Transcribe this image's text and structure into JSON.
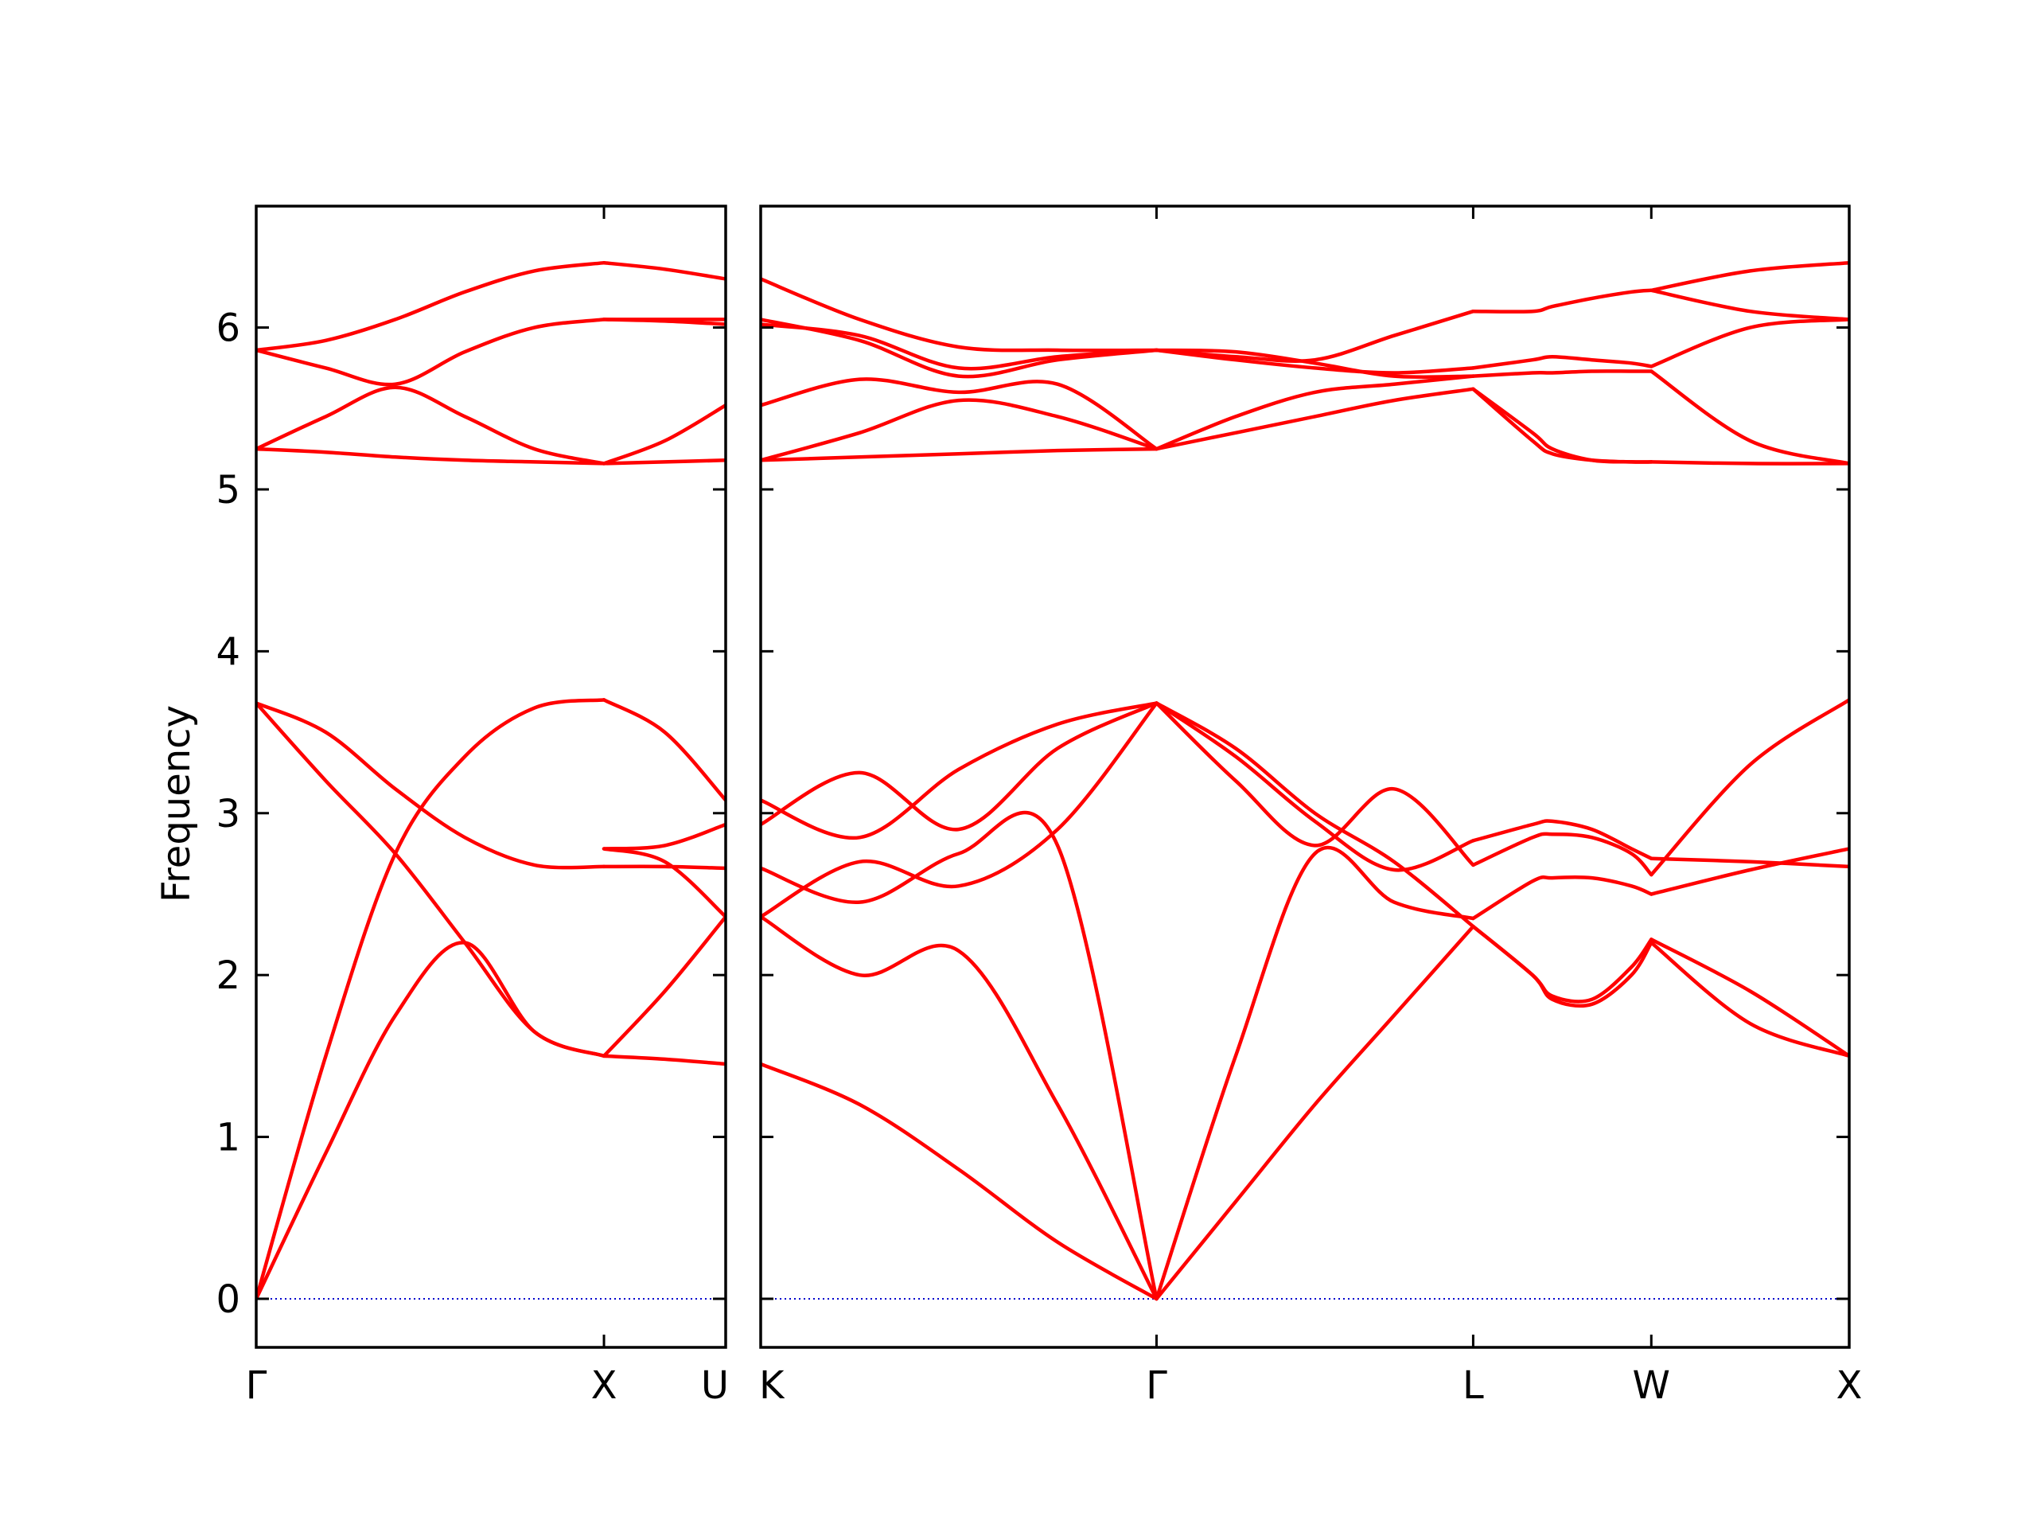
{
  "chart_data": {
    "type": "line",
    "title": "",
    "xlabel": "",
    "ylabel": "Frequency",
    "ylim": [
      -0.3,
      6.75
    ],
    "grid": false,
    "legend": "none",
    "colors": {
      "bands": "#ff0000",
      "zero_line": "#0000cc",
      "axes": "#000000"
    },
    "yticks": [
      "0",
      "1",
      "2",
      "3",
      "4",
      "5",
      "6"
    ],
    "panels": [
      {
        "segments": [
          {
            "x": [
              0.0,
              0.2,
              0.4,
              0.6,
              0.8,
              1.0
            ],
            "series": [
              {
                "values": [
                  0.0,
                  0.9,
                  1.75,
                  2.2,
                  1.65,
                  1.5
                ]
              },
              {
                "values": [
                  0.0,
                  1.5,
                  2.75,
                  3.35,
                  3.65,
                  3.7
                ]
              },
              {
                "values": [
                  3.68,
                  3.2,
                  2.75,
                  2.2,
                  1.65,
                  1.5
                ]
              },
              {
                "values": [
                  3.68,
                  3.5,
                  3.15,
                  2.85,
                  2.68,
                  2.67
                ]
              },
              {
                "values": [
                  5.25,
                  5.23,
                  5.2,
                  5.18,
                  5.17,
                  5.16
                ]
              },
              {
                "values": [
                  5.25,
                  5.45,
                  5.63,
                  5.45,
                  5.25,
                  5.16
                ]
              },
              {
                "values": [
                  5.86,
                  5.75,
                  5.65,
                  5.85,
                  6.0,
                  6.05
                ]
              },
              {
                "values": [
                  5.86,
                  5.92,
                  6.05,
                  6.22,
                  6.35,
                  6.4
                ]
              }
            ]
          },
          {
            "x": [
              1.0,
              1.175,
              1.35
            ],
            "series": [
              {
                "values": [
                  1.5,
                  1.48,
                  1.45
                ]
              },
              {
                "values": [
                  1.5,
                  1.9,
                  2.36
                ]
              },
              {
                "values": [
                  2.67,
                  2.67,
                  2.66
                ]
              },
              {
                "values": [
                  2.78,
                  2.8,
                  2.93
                ]
              },
              {
                "values": [
                  3.7,
                  3.5,
                  3.08
                ]
              },
              {
                "values": [
                  2.78,
                  2.7,
                  2.36
                ]
              },
              {
                "values": [
                  5.16,
                  5.17,
                  5.18
                ]
              },
              {
                "values": [
                  5.16,
                  5.3,
                  5.52
                ]
              },
              {
                "values": [
                  6.05,
                  6.05,
                  6.05
                ]
              },
              {
                "values": [
                  6.05,
                  6.04,
                  6.02
                ]
              },
              {
                "values": [
                  6.4,
                  6.36,
                  6.3
                ]
              }
            ]
          }
        ],
        "xlim": [
          0,
          1.35
        ],
        "xticks": [
          {
            "x": 0.0,
            "label": "Γ"
          },
          {
            "x": 1.0,
            "label": "X"
          },
          {
            "x": 1.35,
            "label": "U"
          }
        ]
      },
      {
        "segments": [
          {
            "x": [
              0.0,
              0.25,
              0.5,
              0.75,
              1.0
            ],
            "series": [
              {
                "values": [
                  1.45,
                  1.2,
                  0.8,
                  0.35,
                  0.0
                ]
              },
              {
                "values": [
                  2.36,
                  2.0,
                  2.15,
                  1.2,
                  0.0
                ]
              },
              {
                "values": [
                  2.66,
                  2.45,
                  2.75,
                  2.8,
                  0.0
                ]
              },
              {
                "values": [
                  2.36,
                  2.7,
                  2.55,
                  2.9,
                  3.68
                ]
              },
              {
                "values": [
                  2.93,
                  3.25,
                  2.9,
                  3.4,
                  3.68
                ]
              },
              {
                "values": [
                  3.08,
                  2.85,
                  3.27,
                  3.55,
                  3.68
                ]
              },
              {
                "values": [
                  5.18,
                  5.2,
                  5.22,
                  5.24,
                  5.25
                ]
              },
              {
                "values": [
                  5.18,
                  5.35,
                  5.55,
                  5.45,
                  5.25
                ]
              },
              {
                "values": [
                  5.52,
                  5.68,
                  5.6,
                  5.65,
                  5.25
                ]
              },
              {
                "values": [
                  6.02,
                  5.95,
                  5.75,
                  5.82,
                  5.86
                ]
              },
              {
                "values": [
                  6.05,
                  5.92,
                  5.7,
                  5.8,
                  5.86
                ]
              },
              {
                "values": [
                  6.3,
                  6.05,
                  5.88,
                  5.86,
                  5.86
                ]
              }
            ]
          },
          {
            "x": [
              1.0,
              1.2,
              1.4,
              1.6,
              1.8
            ],
            "series": [
              {
                "values": [
                  0.0,
                  0.6,
                  1.2,
                  1.75,
                  2.3
                ]
              },
              {
                "values": [
                  0.0,
                  1.5,
                  2.75,
                  2.45,
                  2.35
                ]
              },
              {
                "values": [
                  3.68,
                  3.2,
                  2.8,
                  3.15,
                  2.68
                ]
              },
              {
                "values": [
                  3.68,
                  3.4,
                  3.0,
                  2.7,
                  2.3
                ]
              },
              {
                "values": [
                  3.68,
                  3.35,
                  2.95,
                  2.65,
                  2.83
                ]
              },
              {
                "values": [
                  5.25,
                  5.35,
                  5.45,
                  5.55,
                  5.62
                ]
              },
              {
                "values": [
                  5.25,
                  5.45,
                  5.6,
                  5.65,
                  5.7
                ]
              },
              {
                "values": [
                  5.86,
                  5.8,
                  5.75,
                  5.72,
                  5.75
                ]
              },
              {
                "values": [
                  5.86,
                  5.85,
                  5.78,
                  5.7,
                  5.7
                ]
              },
              {
                "values": [
                  5.86,
                  5.82,
                  5.8,
                  5.95,
                  6.1
                ]
              }
            ]
          },
          {
            "x": [
              1.8,
              1.95,
              2.0,
              2.1,
              2.2,
              2.25
            ],
            "series": [
              {
                "values": [
                  2.3,
                  2.0,
                  1.85,
                  1.82,
                  2.0,
                  2.2
                ]
              },
              {
                "values": [
                  2.3,
                  2.0,
                  1.87,
                  1.85,
                  2.05,
                  2.22
                ]
              },
              {
                "values": [
                  2.35,
                  2.58,
                  2.6,
                  2.6,
                  2.55,
                  2.5
                ]
              },
              {
                "values": [
                  2.68,
                  2.85,
                  2.87,
                  2.85,
                  2.75,
                  2.62
                ]
              },
              {
                "values": [
                  2.83,
                  2.93,
                  2.95,
                  2.9,
                  2.78,
                  2.72
                ]
              },
              {
                "values": [
                  5.62,
                  5.3,
                  5.22,
                  5.18,
                  5.17,
                  5.17
                ]
              },
              {
                "values": [
                  5.62,
                  5.35,
                  5.25,
                  5.18,
                  5.17,
                  5.17
                ]
              },
              {
                "values": [
                  5.7,
                  5.72,
                  5.72,
                  5.73,
                  5.73,
                  5.73
                ]
              },
              {
                "values": [
                  5.75,
                  5.8,
                  5.82,
                  5.8,
                  5.78,
                  5.76
                ]
              },
              {
                "values": [
                  6.1,
                  6.1,
                  6.13,
                  6.18,
                  6.22,
                  6.23
                ]
              }
            ]
          },
          {
            "x": [
              2.25,
              2.5,
              2.75
            ],
            "series": [
              {
                "values": [
                  2.2,
                  1.7,
                  1.5
                ]
              },
              {
                "values": [
                  2.22,
                  1.9,
                  1.5
                ]
              },
              {
                "values": [
                  2.5,
                  2.65,
                  2.78
                ]
              },
              {
                "values": [
                  2.62,
                  3.3,
                  3.7
                ]
              },
              {
                "values": [
                  2.72,
                  2.7,
                  2.67
                ]
              },
              {
                "values": [
                  5.17,
                  5.16,
                  5.16
                ]
              },
              {
                "values": [
                  5.73,
                  5.3,
                  5.16
                ]
              },
              {
                "values": [
                  5.76,
                  6.0,
                  6.05
                ]
              },
              {
                "values": [
                  6.23,
                  6.1,
                  6.05
                ]
              },
              {
                "values": [
                  6.23,
                  6.35,
                  6.4
                ]
              }
            ]
          }
        ],
        "xlim": [
          0,
          2.75
        ],
        "xticks": [
          {
            "x": 0.0,
            "label": "K"
          },
          {
            "x": 1.0,
            "label": "Γ"
          },
          {
            "x": 1.8,
            "label": "L"
          },
          {
            "x": 2.25,
            "label": "W"
          },
          {
            "x": 2.75,
            "label": "X"
          }
        ]
      }
    ]
  }
}
